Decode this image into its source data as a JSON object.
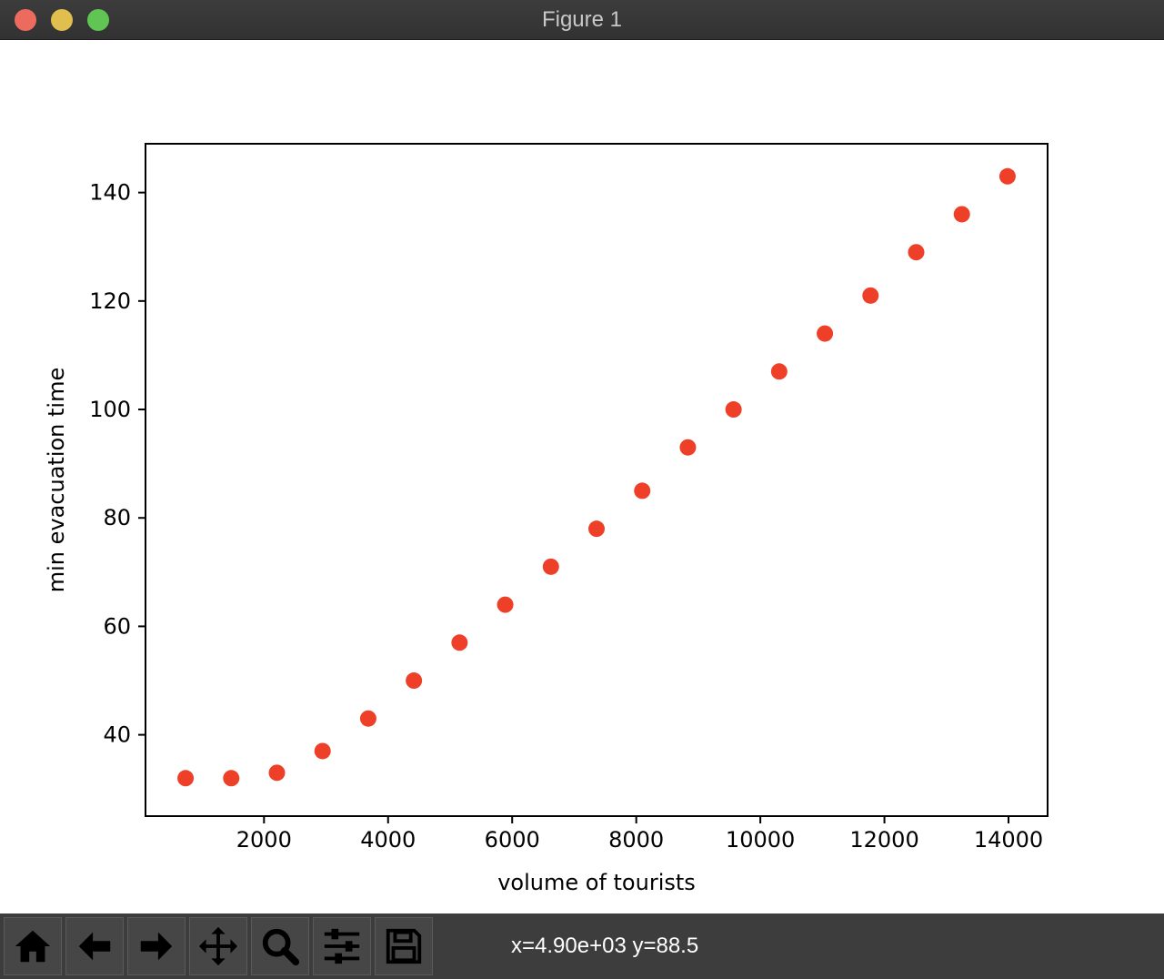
{
  "window": {
    "title": "Figure 1"
  },
  "toolbar": {
    "buttons": [
      {
        "name": "home-button",
        "icon": "home-icon"
      },
      {
        "name": "back-button",
        "icon": "arrow-left-icon"
      },
      {
        "name": "forward-button",
        "icon": "arrow-right-icon"
      },
      {
        "name": "pan-button",
        "icon": "move-icon"
      },
      {
        "name": "zoom-button",
        "icon": "magnifier-icon"
      },
      {
        "name": "configure-subplots-button",
        "icon": "sliders-icon"
      },
      {
        "name": "save-button",
        "icon": "floppy-disk-icon"
      }
    ],
    "coordinates": "x=4.90e+03 y=88.5"
  },
  "chart_data": {
    "type": "scatter",
    "xlabel": "volume of tourists",
    "ylabel": "min evacuation time",
    "xlim": [
      90,
      14630
    ],
    "ylim": [
      25,
      149
    ],
    "xticks": [
      2000,
      4000,
      6000,
      8000,
      10000,
      12000,
      14000
    ],
    "yticks": [
      40,
      60,
      80,
      100,
      120,
      140
    ],
    "marker_color": "#ee4029",
    "grid": false,
    "series": [
      {
        "x": [
          736,
          1472,
          2208,
          2944,
          3680,
          4416,
          5152,
          5888,
          6624,
          7360,
          8096,
          8832,
          9568,
          10304,
          11040,
          11776,
          12512,
          13248,
          13984
        ],
        "y": [
          32,
          32,
          33,
          37,
          43,
          50,
          57,
          64,
          71,
          78,
          85,
          93,
          100,
          107,
          114,
          121,
          129,
          136,
          143
        ]
      }
    ]
  }
}
